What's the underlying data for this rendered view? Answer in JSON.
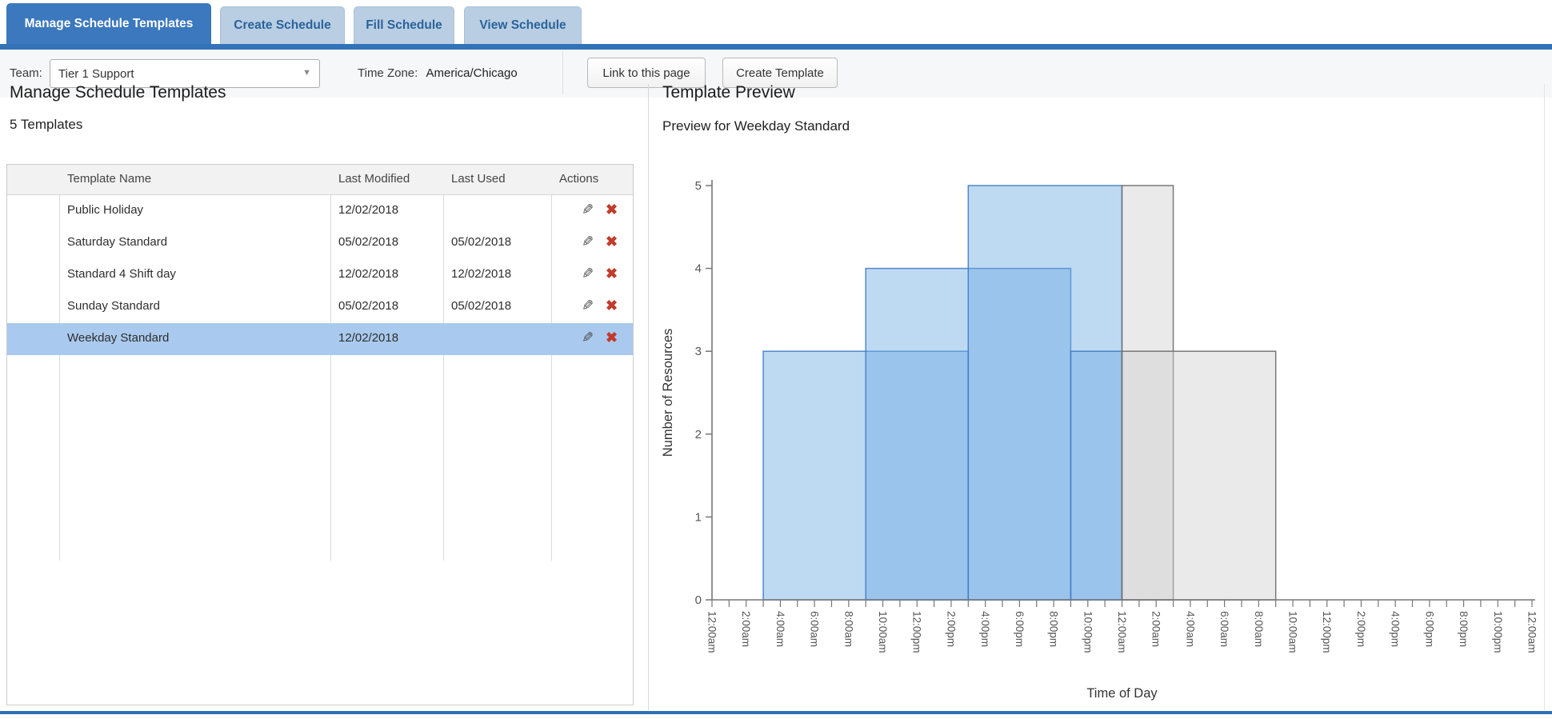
{
  "tabs": [
    {
      "label": "Manage Schedule Templates",
      "active": true
    },
    {
      "label": "Create Schedule",
      "active": false
    },
    {
      "label": "Fill Schedule",
      "active": false
    },
    {
      "label": "View Schedule",
      "active": false
    }
  ],
  "toolbar": {
    "team_label": "Team:",
    "team_value": "Tier 1 Support",
    "caret_icon": "▼",
    "timezone_label": "Time Zone:",
    "timezone_value": "America/Chicago",
    "link_button": "Link to this page",
    "create_button": "Create Template"
  },
  "left_panel": {
    "title": "Manage Schedule Templates",
    "count": "5 Templates",
    "table": {
      "columns": [
        "",
        "Template Name",
        "Last Modified",
        "Last Used",
        "Actions"
      ],
      "edit_icon": "✎",
      "delete_icon": "✖",
      "rows": [
        {
          "name": "Public Holiday",
          "modified": "12/02/2018",
          "used": "",
          "selected": false
        },
        {
          "name": "Saturday Standard",
          "modified": "05/02/2018",
          "used": "05/02/2018",
          "selected": false
        },
        {
          "name": "Standard 4 Shift day",
          "modified": "12/02/2018",
          "used": "12/02/2018",
          "selected": false
        },
        {
          "name": "Sunday Standard",
          "modified": "05/02/2018",
          "used": "05/02/2018",
          "selected": false
        },
        {
          "name": "Weekday Standard",
          "modified": "12/02/2018",
          "used": "",
          "selected": true
        }
      ]
    }
  },
  "right_panel": {
    "title": "Template Preview",
    "subtitle": "Preview for Weekday Standard"
  },
  "chart_data": {
    "type": "bar",
    "title": "Preview for Weekday Standard",
    "xlabel": "Time of Day",
    "ylabel": "Number of Resources",
    "ylim": [
      0,
      5
    ],
    "y_ticks": [
      0,
      1,
      2,
      3,
      4,
      5
    ],
    "x_span_hours": 48,
    "x_tick_every_hours": 1,
    "x_label_every_hours": 2,
    "x_tick_labels": [
      "12:00am",
      "2:00am",
      "4:00am",
      "6:00am",
      "8:00am",
      "10:00am",
      "12:00pm",
      "2:00pm",
      "4:00pm",
      "6:00pm",
      "8:00pm",
      "10:00pm",
      "12:00am",
      "2:00am",
      "4:00am",
      "6:00am",
      "8:00am",
      "10:00am",
      "12:00pm",
      "2:00pm",
      "4:00pm",
      "6:00pm",
      "8:00pm",
      "10:00pm",
      "12:00am"
    ],
    "series_note": "each shift drawn as translucent rectangle; portion after midnight drawn gray",
    "shifts": [
      {
        "name": "shift-1",
        "start_hour": 3,
        "end_hour": 15,
        "resources": 3
      },
      {
        "name": "shift-2",
        "start_hour": 9,
        "end_hour": 21,
        "resources": 4
      },
      {
        "name": "shift-3",
        "start_hour": 15,
        "end_hour": 27,
        "resources": 5
      },
      {
        "name": "shift-4",
        "start_hour": 21,
        "end_hour": 33,
        "resources": 3
      }
    ],
    "colors": {
      "blue_fill": "#6fabe3",
      "blue_stroke": "#3a76c4",
      "gray_fill": "#d0d0d0",
      "gray_stroke": "#6b6b6b",
      "axis": "#777777",
      "tick_label": "#555555",
      "axis_title": "#333333"
    },
    "legend_position": "none",
    "grid": false
  }
}
